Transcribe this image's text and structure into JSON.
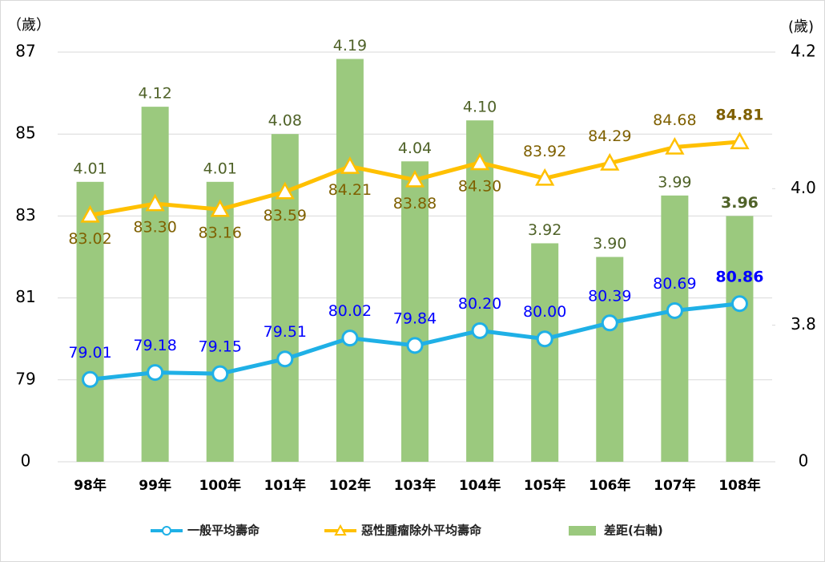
{
  "chart_data": {
    "type": "line_bar_combo",
    "y_unit_label": "（歲）",
    "y2_unit_label": "(歲)",
    "categories": [
      "98年",
      "99年",
      "100年",
      "101年",
      "102年",
      "103年",
      "104年",
      "105年",
      "106年",
      "107年",
      "108年"
    ],
    "ylim": [
      0,
      87
    ],
    "yticks": [
      0,
      79,
      81,
      83,
      85,
      87
    ],
    "y2lim": [
      0,
      4.2
    ],
    "y2ticks": [
      0,
      3.8,
      {
        "value": 4.0,
        "label": "4.0"
      },
      4.2
    ],
    "axis_break": true,
    "grid": true,
    "series": [
      {
        "name": "一般平均壽命",
        "type": "line",
        "marker": "circle",
        "color": "#1fb0e6",
        "label_color": "#0000ff",
        "values": [
          79.01,
          79.18,
          79.15,
          79.51,
          80.02,
          79.84,
          80.2,
          80.0,
          80.39,
          80.69,
          80.86
        ],
        "value_labels": [
          "79.01",
          "79.18",
          "79.15",
          "79.51",
          "80.02",
          "79.84",
          "80.20",
          "80.00",
          "80.39",
          "80.69",
          "80.86"
        ]
      },
      {
        "name": "惡性腫瘤除外平均壽命",
        "type": "line",
        "marker": "triangle",
        "color": "#ffc000",
        "label_color": "#7f6000",
        "values": [
          83.02,
          83.3,
          83.16,
          83.59,
          84.21,
          83.88,
          84.3,
          83.92,
          84.29,
          84.68,
          84.81
        ],
        "value_labels": [
          "83.02",
          "83.30",
          "83.16",
          "83.59",
          "84.21",
          "83.88",
          "84.30",
          "83.92",
          "84.29",
          "84.68",
          "84.81"
        ]
      },
      {
        "name": "差距(右軸)",
        "type": "bar",
        "axis": "y2",
        "color": "#9bc97e",
        "label_color": "#4f6228",
        "values": [
          4.01,
          4.12,
          4.01,
          4.08,
          4.19,
          4.04,
          4.1,
          3.92,
          3.9,
          3.99,
          3.96
        ],
        "value_labels": [
          "4.01",
          "4.12",
          "4.01",
          "4.08",
          "4.19",
          "4.04",
          "4.10",
          "3.92",
          "3.90",
          "3.99",
          "3.96"
        ]
      }
    ]
  }
}
